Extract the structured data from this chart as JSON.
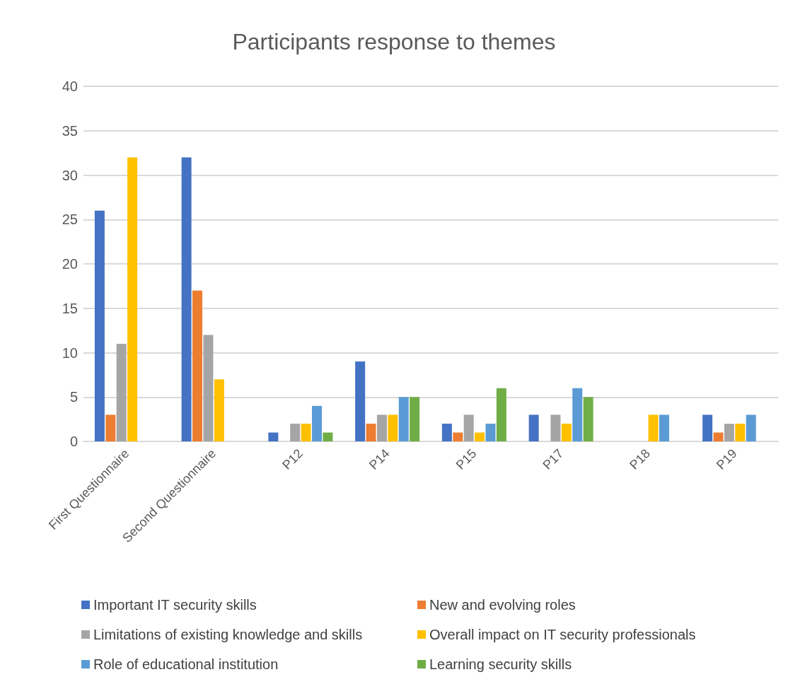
{
  "chart_data": {
    "type": "bar",
    "title": "Participants response to themes",
    "categories": [
      "First Questionnaire",
      "Second Questionnaire",
      "P12",
      "P14",
      "P15",
      "P17",
      "P18",
      "P19"
    ],
    "series": [
      {
        "name": "Important IT security skills",
        "color": "#4472c4",
        "values": [
          26,
          32,
          1,
          9,
          2,
          3,
          0,
          3
        ]
      },
      {
        "name": "New and evolving roles",
        "color": "#ed7d31",
        "values": [
          3,
          17,
          0,
          2,
          1,
          0,
          0,
          1
        ]
      },
      {
        "name": "Limitations of existing knowledge and skills",
        "color": "#a5a5a5",
        "values": [
          11,
          12,
          2,
          3,
          3,
          3,
          0,
          2
        ]
      },
      {
        "name": "Overall impact on IT security professionals",
        "color": "#ffc000",
        "values": [
          32,
          7,
          2,
          3,
          1,
          2,
          3,
          2
        ]
      },
      {
        "name": "Role of educational institution",
        "color": "#5b9bd5",
        "values": [
          0,
          0,
          4,
          5,
          2,
          6,
          3,
          3
        ]
      },
      {
        "name": "Learning security skills",
        "color": "#70ad47",
        "values": [
          0,
          0,
          1,
          5,
          6,
          5,
          0,
          0
        ]
      }
    ],
    "ylim": [
      0,
      40
    ],
    "yticks": [
      0,
      5,
      10,
      15,
      20,
      25,
      30,
      35,
      40
    ],
    "grid": "y",
    "legend": "bottom"
  }
}
